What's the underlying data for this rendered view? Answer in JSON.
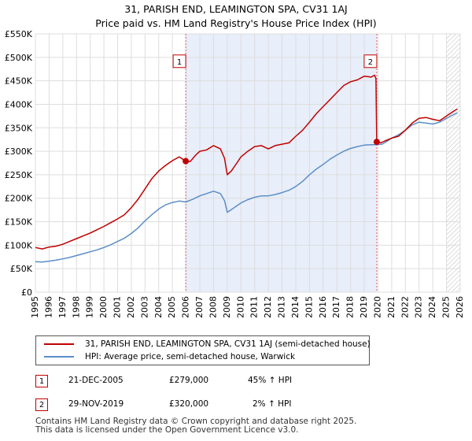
{
  "title_line1": "31, PARISH END, LEAMINGTON SPA, CV31 1AJ",
  "title_line2": "Price paid vs. HM Land Registry's House Price Index (HPI)",
  "colors": {
    "property": "#c00000",
    "hpi": "#5b8ec9",
    "band": "#e8eefa",
    "grid": "#dddddd",
    "marker_border": "#c00000"
  },
  "legend": {
    "property_label": "31, PARISH END, LEAMINGTON SPA, CV31 1AJ (semi-detached house)",
    "hpi_label": "HPI: Average price, semi-detached house, Warwick"
  },
  "transactions": [
    {
      "num": "1",
      "date": "21-DEC-2005",
      "price": "£279,000",
      "hpi_change": "45% ↑ HPI"
    },
    {
      "num": "2",
      "date": "29-NOV-2019",
      "price": "£320,000",
      "hpi_change": "2% ↑ HPI"
    }
  ],
  "footer_line1": "Contains HM Land Registry data © Crown copyright and database right 2025.",
  "footer_line2": "This data is licensed under the Open Government Licence v3.0.",
  "chart_data": {
    "type": "line",
    "xlim": [
      1995,
      2026
    ],
    "ylim": [
      0,
      550000
    ],
    "x_ticks": [
      "1995",
      "1996",
      "1997",
      "1998",
      "1999",
      "2000",
      "2001",
      "2002",
      "2003",
      "2004",
      "2005",
      "2006",
      "2007",
      "2008",
      "2009",
      "2010",
      "2011",
      "2012",
      "2013",
      "2014",
      "2015",
      "2016",
      "2017",
      "2018",
      "2019",
      "2020",
      "2021",
      "2022",
      "2023",
      "2024",
      "2025",
      "2026"
    ],
    "y_ticks": [
      {
        "value": 0,
        "label": "£0"
      },
      {
        "value": 50000,
        "label": "£50K"
      },
      {
        "value": 100000,
        "label": "£100K"
      },
      {
        "value": 150000,
        "label": "£150K"
      },
      {
        "value": 200000,
        "label": "£200K"
      },
      {
        "value": 250000,
        "label": "£250K"
      },
      {
        "value": 300000,
        "label": "£300K"
      },
      {
        "value": 350000,
        "label": "£350K"
      },
      {
        "value": 400000,
        "label": "£400K"
      },
      {
        "value": 450000,
        "label": "£450K"
      },
      {
        "value": 500000,
        "label": "£500K"
      },
      {
        "value": 550000,
        "label": "£550K"
      }
    ],
    "shaded_band": [
      2005.97,
      2019.91
    ],
    "hatch_from": 2025.0,
    "annotations": [
      {
        "label": "1",
        "x": 2005.97,
        "y": 279000,
        "box_y": 490000
      },
      {
        "label": "2",
        "x": 2019.91,
        "y": 320000,
        "box_y": 490000
      }
    ],
    "series": [
      {
        "name": "31, PARISH END, LEAMINGTON SPA, CV31 1AJ (semi-detached house)",
        "color": "#c00000",
        "points": [
          [
            1995.0,
            95000
          ],
          [
            1995.5,
            92000
          ],
          [
            1996.0,
            96000
          ],
          [
            1996.5,
            98000
          ],
          [
            1997.0,
            102000
          ],
          [
            1997.5,
            108000
          ],
          [
            1998.0,
            114000
          ],
          [
            1998.5,
            120000
          ],
          [
            1999.0,
            126000
          ],
          [
            1999.5,
            133000
          ],
          [
            2000.0,
            140000
          ],
          [
            2000.5,
            148000
          ],
          [
            2001.0,
            156000
          ],
          [
            2001.5,
            165000
          ],
          [
            2002.0,
            180000
          ],
          [
            2002.5,
            198000
          ],
          [
            2003.0,
            220000
          ],
          [
            2003.5,
            242000
          ],
          [
            2004.0,
            258000
          ],
          [
            2004.5,
            270000
          ],
          [
            2005.0,
            280000
          ],
          [
            2005.5,
            288000
          ],
          [
            2005.97,
            279000
          ],
          [
            2006.3,
            278000
          ],
          [
            2006.7,
            292000
          ],
          [
            2007.0,
            300000
          ],
          [
            2007.5,
            303000
          ],
          [
            2008.0,
            312000
          ],
          [
            2008.5,
            305000
          ],
          [
            2008.8,
            285000
          ],
          [
            2009.0,
            250000
          ],
          [
            2009.3,
            258000
          ],
          [
            2009.7,
            275000
          ],
          [
            2010.0,
            288000
          ],
          [
            2010.5,
            300000
          ],
          [
            2011.0,
            310000
          ],
          [
            2011.5,
            312000
          ],
          [
            2012.0,
            305000
          ],
          [
            2012.5,
            312000
          ],
          [
            2013.0,
            315000
          ],
          [
            2013.5,
            318000
          ],
          [
            2014.0,
            332000
          ],
          [
            2014.5,
            345000
          ],
          [
            2015.0,
            362000
          ],
          [
            2015.5,
            380000
          ],
          [
            2016.0,
            395000
          ],
          [
            2016.5,
            410000
          ],
          [
            2017.0,
            425000
          ],
          [
            2017.5,
            440000
          ],
          [
            2018.0,
            448000
          ],
          [
            2018.5,
            452000
          ],
          [
            2019.0,
            460000
          ],
          [
            2019.5,
            458000
          ],
          [
            2019.75,
            462000
          ],
          [
            2019.85,
            455000
          ],
          [
            2019.91,
            320000
          ],
          [
            2020.2,
            318000
          ],
          [
            2020.5,
            322000
          ],
          [
            2021.0,
            328000
          ],
          [
            2021.5,
            332000
          ],
          [
            2022.0,
            345000
          ],
          [
            2022.5,
            360000
          ],
          [
            2023.0,
            370000
          ],
          [
            2023.5,
            372000
          ],
          [
            2024.0,
            368000
          ],
          [
            2024.5,
            365000
          ],
          [
            2025.0,
            375000
          ],
          [
            2025.5,
            385000
          ],
          [
            2025.8,
            390000
          ]
        ]
      },
      {
        "name": "HPI: Average price, semi-detached house, Warwick",
        "color": "#5b8ec9",
        "points": [
          [
            1995.0,
            65000
          ],
          [
            1995.5,
            64000
          ],
          [
            1996.0,
            66000
          ],
          [
            1996.5,
            68000
          ],
          [
            1997.0,
            71000
          ],
          [
            1997.5,
            74000
          ],
          [
            1998.0,
            78000
          ],
          [
            1998.5,
            82000
          ],
          [
            1999.0,
            86000
          ],
          [
            1999.5,
            90000
          ],
          [
            2000.0,
            95000
          ],
          [
            2000.5,
            101000
          ],
          [
            2001.0,
            108000
          ],
          [
            2001.5,
            115000
          ],
          [
            2002.0,
            125000
          ],
          [
            2002.5,
            137000
          ],
          [
            2003.0,
            152000
          ],
          [
            2003.5,
            165000
          ],
          [
            2004.0,
            177000
          ],
          [
            2004.5,
            186000
          ],
          [
            2005.0,
            191000
          ],
          [
            2005.5,
            194000
          ],
          [
            2005.97,
            192000
          ],
          [
            2006.5,
            198000
          ],
          [
            2007.0,
            205000
          ],
          [
            2007.5,
            210000
          ],
          [
            2008.0,
            215000
          ],
          [
            2008.5,
            210000
          ],
          [
            2008.8,
            195000
          ],
          [
            2009.0,
            170000
          ],
          [
            2009.5,
            180000
          ],
          [
            2010.0,
            190000
          ],
          [
            2010.5,
            197000
          ],
          [
            2011.0,
            202000
          ],
          [
            2011.5,
            205000
          ],
          [
            2012.0,
            205000
          ],
          [
            2012.5,
            208000
          ],
          [
            2013.0,
            212000
          ],
          [
            2013.5,
            217000
          ],
          [
            2014.0,
            225000
          ],
          [
            2014.5,
            236000
          ],
          [
            2015.0,
            250000
          ],
          [
            2015.5,
            262000
          ],
          [
            2016.0,
            272000
          ],
          [
            2016.5,
            283000
          ],
          [
            2017.0,
            292000
          ],
          [
            2017.5,
            300000
          ],
          [
            2018.0,
            306000
          ],
          [
            2018.5,
            310000
          ],
          [
            2019.0,
            313000
          ],
          [
            2019.5,
            314000
          ],
          [
            2019.91,
            314000
          ],
          [
            2020.3,
            315000
          ],
          [
            2020.7,
            322000
          ],
          [
            2021.0,
            328000
          ],
          [
            2021.5,
            335000
          ],
          [
            2022.0,
            345000
          ],
          [
            2022.5,
            356000
          ],
          [
            2023.0,
            362000
          ],
          [
            2023.5,
            360000
          ],
          [
            2024.0,
            358000
          ],
          [
            2024.5,
            362000
          ],
          [
            2025.0,
            370000
          ],
          [
            2025.5,
            378000
          ],
          [
            2025.8,
            382000
          ]
        ]
      }
    ]
  }
}
